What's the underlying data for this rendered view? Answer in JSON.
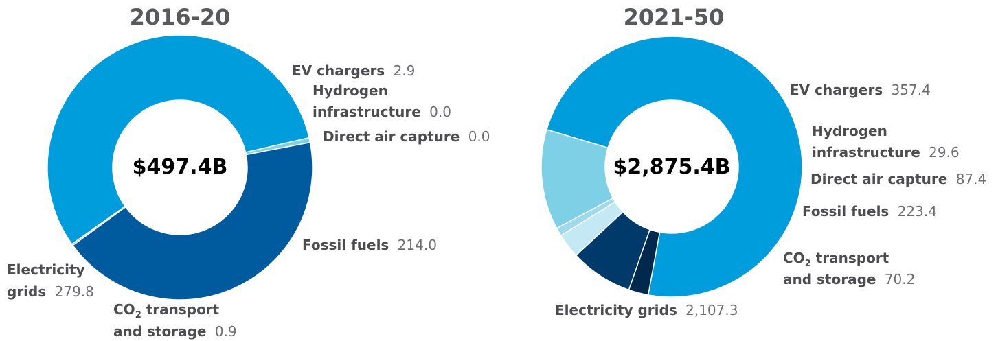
{
  "chart_data": [
    {
      "type": "pie",
      "title": "2016-20",
      "total_label": "$497.4B",
      "slices": [
        {
          "name": "Electricity grids",
          "value": 279.8,
          "value_label": "279.8",
          "color": "#009ddc"
        },
        {
          "name": "EV chargers",
          "value": 2.9,
          "value_label": "2.9",
          "color": "#7dd0e6"
        },
        {
          "name": "Hydrogen infrastructure",
          "value": 0.0,
          "value_label": "0.0",
          "color": "#b8e3f0"
        },
        {
          "name": "Direct air capture",
          "value": 0.0,
          "value_label": "0.0",
          "color": "#c5e9f4"
        },
        {
          "name": "Fossil fuels",
          "value": 214.0,
          "value_label": "214.0",
          "color": "#005b9e"
        },
        {
          "name": "CO2 transport and storage",
          "value": 0.9,
          "value_label": "0.9",
          "color": "#9fb4c8"
        }
      ]
    },
    {
      "type": "pie",
      "title": "2021-50",
      "total_label": "$2,875.4B",
      "slices": [
        {
          "name": "Electricity grids",
          "value": 2107.3,
          "value_label": "2,107.3",
          "color": "#009ddc"
        },
        {
          "name": "EV chargers",
          "value": 357.4,
          "value_label": "357.4",
          "color": "#7dd0e6"
        },
        {
          "name": "Hydrogen infrastructure",
          "value": 29.6,
          "value_label": "29.6",
          "color": "#9edaec"
        },
        {
          "name": "Direct air capture",
          "value": 87.4,
          "value_label": "87.4",
          "color": "#c5e9f4"
        },
        {
          "name": "Fossil fuels",
          "value": 223.4,
          "value_label": "223.4",
          "color": "#003a6b"
        },
        {
          "name": "CO2 transport and storage",
          "value": 70.2,
          "value_label": "70.2",
          "color": "#00294d"
        }
      ]
    }
  ]
}
